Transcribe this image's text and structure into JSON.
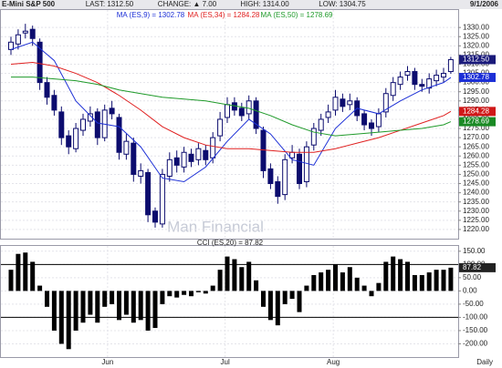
{
  "chart_data": [
    {
      "type": "candlestick",
      "title": "E-Mini S&P 500",
      "header": [
        "LAST: 1312.50",
        "CHANGE: ▲ 7.00",
        "HIGH: 1314.00",
        "LOW: 1304.75"
      ],
      "date": "9/1/2006",
      "watermark": "Man Financial",
      "x_label": "Daily",
      "color": "#0c0c6e",
      "open": [
        1318,
        1321,
        1327,
        1329,
        1322,
        1300,
        1293,
        1284,
        1271,
        1264,
        1274,
        1279,
        1284,
        1270,
        1286,
        1281,
        1261,
        1267,
        1249,
        1251,
        1230,
        1223,
        1249,
        1259,
        1254,
        1261,
        1258,
        1263,
        1259,
        1271,
        1281,
        1289,
        1286,
        1283,
        1290,
        1274,
        1253,
        1246,
        1239,
        1259,
        1261,
        1246,
        1266,
        1274,
        1281,
        1285,
        1291,
        1288,
        1290,
        1283,
        1278,
        1276,
        1284,
        1293,
        1299,
        1304,
        1306,
        1299,
        1297,
        1301,
        1303,
        1306
      ],
      "high": [
        1325,
        1329,
        1332,
        1331,
        1324,
        1303,
        1296,
        1287,
        1274,
        1278,
        1283,
        1287,
        1286,
        1288,
        1290,
        1283,
        1272,
        1270,
        1256,
        1253,
        1232,
        1253,
        1262,
        1263,
        1265,
        1264,
        1267,
        1266,
        1273,
        1284,
        1292,
        1292,
        1289,
        1293,
        1292,
        1276,
        1256,
        1249,
        1261,
        1266,
        1264,
        1268,
        1278,
        1283,
        1288,
        1296,
        1294,
        1294,
        1292,
        1285,
        1280,
        1286,
        1297,
        1303,
        1306,
        1309,
        1308,
        1302,
        1305,
        1307,
        1308,
        1314
      ],
      "low": [
        1315,
        1318,
        1324,
        1320,
        1296,
        1288,
        1282,
        1266,
        1261,
        1262,
        1271,
        1276,
        1266,
        1268,
        1280,
        1258,
        1258,
        1246,
        1245,
        1224,
        1221,
        1221,
        1246,
        1251,
        1251,
        1254,
        1255,
        1255,
        1256,
        1268,
        1278,
        1282,
        1279,
        1280,
        1272,
        1248,
        1242,
        1234,
        1236,
        1256,
        1242,
        1243,
        1263,
        1271,
        1278,
        1282,
        1284,
        1285,
        1279,
        1274,
        1271,
        1273,
        1281,
        1290,
        1296,
        1301,
        1296,
        1295,
        1294,
        1298,
        1300,
        1304.75
      ],
      "close": [
        1322,
        1326,
        1328,
        1324,
        1300,
        1292,
        1285,
        1270,
        1265,
        1275,
        1280,
        1283,
        1270,
        1285,
        1283,
        1262,
        1268,
        1250,
        1252,
        1228,
        1224,
        1250,
        1258,
        1255,
        1262,
        1257,
        1264,
        1258,
        1270,
        1280,
        1288,
        1285,
        1282,
        1290,
        1275,
        1252,
        1245,
        1238,
        1258,
        1262,
        1245,
        1265,
        1275,
        1280,
        1284,
        1292,
        1287,
        1290,
        1282,
        1277,
        1275,
        1283,
        1294,
        1300,
        1303,
        1306,
        1299,
        1298,
        1302,
        1304,
        1305,
        1312.5
      ],
      "series": [
        {
          "name": "MA (ES,9) = 1302.78",
          "color": "#1c2fd6",
          "x": [
            0,
            3,
            6,
            9,
            12,
            15,
            18,
            21,
            24,
            27,
            30,
            33,
            36,
            39,
            42,
            45,
            48,
            51,
            54,
            57,
            60,
            61
          ],
          "values": [
            1318,
            1322,
            1312,
            1290,
            1278,
            1276,
            1265,
            1248,
            1246,
            1254,
            1268,
            1280,
            1272,
            1258,
            1255,
            1275,
            1286,
            1283,
            1290,
            1296,
            1300,
            1302.78
          ]
        },
        {
          "name": "MA (ES,34) = 1284.28",
          "color": "#e02020",
          "x": [
            0,
            3,
            6,
            9,
            12,
            15,
            18,
            21,
            24,
            27,
            30,
            33,
            36,
            39,
            42,
            45,
            48,
            51,
            54,
            57,
            60,
            61
          ],
          "values": [
            1310,
            1311,
            1309,
            1305,
            1300,
            1293,
            1285,
            1276,
            1270,
            1266,
            1264,
            1264,
            1263,
            1262,
            1262,
            1264,
            1267,
            1270,
            1274,
            1278,
            1282,
            1284.28
          ]
        },
        {
          "name": "MA (ES,50) = 1278.69",
          "color": "#1f9a2a",
          "x": [
            0,
            3,
            6,
            9,
            12,
            15,
            18,
            21,
            24,
            27,
            30,
            33,
            36,
            39,
            42,
            45,
            48,
            51,
            54,
            57,
            60,
            61
          ],
          "values": [
            1303,
            1303,
            1302,
            1301,
            1299,
            1296,
            1294,
            1292,
            1291,
            1290,
            1288,
            1286,
            1282,
            1277,
            1273,
            1271,
            1272,
            1273,
            1274,
            1275,
            1277,
            1278.69
          ]
        }
      ],
      "markers": [
        {
          "value": 1312.5,
          "label": "1312.50",
          "color": "#1a1a7a"
        },
        {
          "value": 1302.78,
          "label": "1302.78",
          "color": "#1c2fd6"
        },
        {
          "value": 1284.28,
          "label": "1284.28",
          "color": "#d01818"
        },
        {
          "value": 1278.69,
          "label": "1278.69",
          "color": "#1a8a24"
        }
      ],
      "ylim": [
        1215,
        1340
      ],
      "yticks": [
        {
          "value": 1220,
          "label": "1220.00"
        },
        {
          "value": 1225,
          "label": "1225.00"
        },
        {
          "value": 1230,
          "label": "1230.00"
        },
        {
          "value": 1235,
          "label": "1235.00"
        },
        {
          "value": 1240,
          "label": "1240.00"
        },
        {
          "value": 1245,
          "label": "1245.00"
        },
        {
          "value": 1250,
          "label": "1250.00"
        },
        {
          "value": 1255,
          "label": "1255.00"
        },
        {
          "value": 1260,
          "label": "1260.00"
        },
        {
          "value": 1265,
          "label": "1265.00"
        },
        {
          "value": 1270,
          "label": "1270.00"
        },
        {
          "value": 1275,
          "label": "1275.00"
        },
        {
          "value": 1280,
          "label": "1280.00"
        },
        {
          "value": 1285,
          "label": "1285.00"
        },
        {
          "value": 1290,
          "label": "1290.00"
        },
        {
          "value": 1295,
          "label": "1295.00"
        },
        {
          "value": 1300,
          "label": "1300.00"
        },
        {
          "value": 1305,
          "label": "1305.00"
        },
        {
          "value": 1310,
          "label": "1310.00"
        },
        {
          "value": 1315,
          "label": "1315.00"
        },
        {
          "value": 1320,
          "label": "1320.00"
        },
        {
          "value": 1325,
          "label": "1325.00"
        },
        {
          "value": 1330,
          "label": "1330.00"
        }
      ],
      "xticks": [
        {
          "value": 13.4,
          "label": "Jun"
        },
        {
          "value": 29.7,
          "label": "Jul"
        },
        {
          "value": 44.7,
          "label": "Aug"
        }
      ],
      "grid": true
    },
    {
      "type": "bar",
      "title": "CCI (ES,20) = 87.82",
      "color": "#000000",
      "values": [
        80,
        140,
        145,
        110,
        20,
        -60,
        -150,
        -200,
        -220,
        -150,
        -120,
        -90,
        -120,
        -60,
        -50,
        -110,
        -90,
        -120,
        -110,
        -150,
        -140,
        -50,
        -20,
        -25,
        -15,
        -20,
        -5,
        -10,
        20,
        80,
        130,
        120,
        90,
        110,
        40,
        -60,
        -110,
        -130,
        -50,
        -30,
        -80,
        20,
        60,
        70,
        80,
        100,
        70,
        90,
        50,
        20,
        -20,
        30,
        110,
        130,
        120,
        110,
        60,
        60,
        70,
        80,
        80,
        87.82
      ],
      "markers": [
        {
          "value": 87.82,
          "label": "87.82",
          "color": "#222222"
        }
      ],
      "ref_lines": [
        100,
        -100
      ],
      "ylim": [
        -250,
        170
      ],
      "yticks": [
        {
          "value": 150,
          "label": "150.00"
        },
        {
          "value": 100,
          "label": "100.00"
        },
        {
          "value": 50,
          "label": "50.00"
        },
        {
          "value": 0,
          "label": "0.00"
        },
        {
          "value": -50,
          "label": "-50.00"
        },
        {
          "value": -100,
          "label": "-100.00"
        },
        {
          "value": -150,
          "label": "-150.00"
        },
        {
          "value": -200,
          "label": "-200.00"
        }
      ],
      "grid": true
    }
  ]
}
